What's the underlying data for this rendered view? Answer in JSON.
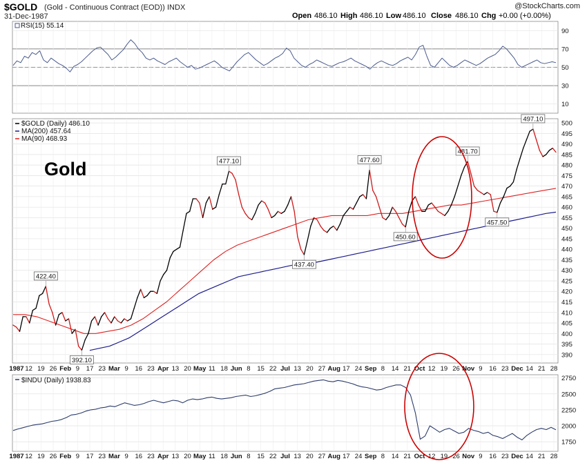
{
  "header": {
    "symbol": "$GOLD",
    "name": "(Gold - Continuous Contract (EOD))",
    "exchange": "INDX",
    "date": "31-Dec-1987",
    "copyright": "@StockCharts.com",
    "ohlc": {
      "open_label": "Open",
      "open": "486.10",
      "high_label": "High",
      "high": "486.10",
      "low_label": "Low",
      "low": "486.10",
      "close_label": "Close",
      "close": "486.10",
      "chg_label": "Chg",
      "chg": "+0.00 (+0.00%)"
    }
  },
  "overlay_text": "Gold",
  "colors": {
    "price": "#000000",
    "ma200": "#1a1a8c",
    "ma90": "#e02020",
    "rsi": "#4a5a8c",
    "indu": "#2a3a6a",
    "circle": "#cc0000"
  },
  "chart_data": [
    {
      "type": "line",
      "panel": "rsi",
      "legend": "RSI(15) 55.14",
      "ylim": [
        0,
        100
      ],
      "yticks": [
        "90",
        "70",
        "50",
        "30",
        "10"
      ],
      "reference_lines": [
        70,
        50,
        30
      ],
      "values": [
        52,
        57,
        55,
        62,
        60,
        66,
        64,
        68,
        58,
        55,
        60,
        57,
        54,
        52,
        49,
        45,
        51,
        53,
        56,
        60,
        64,
        68,
        71,
        72,
        68,
        64,
        58,
        61,
        65,
        69,
        75,
        80,
        76,
        70,
        66,
        60,
        58,
        60,
        57,
        55,
        53,
        56,
        58,
        60,
        56,
        53,
        50,
        52,
        48,
        49,
        51,
        53,
        55,
        57,
        54,
        50,
        48,
        46,
        51,
        56,
        60,
        64,
        66,
        62,
        58,
        55,
        52,
        54,
        57,
        60,
        62,
        65,
        71,
        68,
        60,
        56,
        52,
        50,
        53,
        55,
        58,
        56,
        54,
        52,
        51,
        53,
        55,
        56,
        58,
        60,
        57,
        55,
        53,
        51,
        48,
        52,
        55,
        57,
        55,
        53,
        52,
        54,
        57,
        59,
        61,
        58,
        64,
        72,
        74,
        62,
        52,
        50,
        55,
        60,
        56,
        52,
        50,
        52,
        55,
        58,
        56,
        54,
        52,
        54,
        57,
        60,
        62,
        64,
        68,
        73,
        70,
        65,
        60,
        53,
        50,
        52,
        54,
        56,
        58,
        55,
        54,
        55,
        56,
        55
      ]
    },
    {
      "type": "line",
      "panel": "price",
      "series": [
        {
          "name": "$GOLD (Daily) 486.10",
          "values": [
            404,
            403,
            401,
            408,
            408,
            405,
            411,
            412,
            418,
            419,
            422.4,
            414,
            410,
            404,
            409,
            410,
            406,
            407,
            400,
            402,
            394,
            392.1,
            397,
            400,
            406,
            408,
            404,
            408,
            410,
            407,
            405,
            408,
            406,
            405,
            407,
            406,
            407,
            412,
            417,
            421,
            417,
            418,
            420,
            420,
            419,
            425,
            428,
            430,
            436,
            439,
            440,
            441,
            449,
            457,
            458,
            464,
            464,
            462,
            455,
            462,
            465,
            459,
            460,
            466,
            471,
            471,
            477.1,
            476,
            473,
            466,
            460,
            457,
            455,
            454,
            457,
            461,
            463,
            462,
            459,
            455,
            456,
            458,
            457,
            458,
            461,
            465,
            458,
            446,
            440,
            437.4,
            444,
            451,
            455,
            454,
            451,
            449,
            448,
            450,
            451,
            449,
            452,
            456,
            458,
            460,
            459,
            462,
            465,
            466,
            464,
            477.6,
            468,
            465,
            460,
            455,
            454,
            456,
            460,
            458,
            455,
            452,
            450.6,
            458,
            463,
            465,
            461,
            458,
            458,
            461,
            462,
            460,
            458,
            457,
            456,
            458,
            461,
            465,
            470,
            475,
            479,
            481.7,
            476,
            470,
            468,
            467,
            466,
            467,
            466,
            458,
            457.5,
            462,
            465,
            469,
            470,
            472,
            478,
            483,
            488,
            492,
            496,
            497.1,
            492,
            487,
            484,
            485,
            487,
            488,
            486.1
          ]
        },
        {
          "name": "MA(200) 457.64",
          "values": [
            392,
            393,
            394,
            396,
            398,
            401,
            404,
            407,
            410,
            413,
            416,
            419,
            421,
            423,
            425,
            427,
            428,
            429,
            430,
            431,
            432,
            433,
            433,
            434,
            435,
            436,
            437,
            438,
            439,
            440,
            441,
            442,
            443,
            444,
            445,
            446,
            447,
            448,
            449,
            450,
            451,
            452,
            453,
            454,
            455,
            456,
            457,
            457.64
          ]
        },
        {
          "name": "MA(90) 468.93",
          "values": [
            409,
            409,
            408,
            406,
            404,
            402,
            400,
            400,
            401,
            402,
            404,
            407,
            411,
            415,
            420,
            425,
            430,
            435,
            439,
            442,
            444,
            446,
            448,
            450,
            452,
            454,
            455,
            456,
            456,
            456,
            456,
            457,
            457,
            457,
            458,
            459,
            460,
            461,
            461,
            462,
            463,
            464,
            465,
            466,
            467,
            468,
            468.93
          ]
        }
      ],
      "ylim": [
        386,
        502
      ],
      "yticks": [
        "500",
        "495",
        "490",
        "485",
        "480",
        "475",
        "470",
        "465",
        "460",
        "455",
        "450",
        "445",
        "440",
        "435",
        "430",
        "425",
        "420",
        "415",
        "410",
        "405",
        "400",
        "395",
        "390"
      ],
      "annotations": [
        "422.40",
        "392.10",
        "477.10",
        "437.40",
        "477.60",
        "450.60",
        "481.70",
        "457.50",
        "497.10"
      ]
    },
    {
      "type": "line",
      "panel": "indu",
      "legend": "$INDU (Daily) 1938.83",
      "ylim": [
        1600,
        2800
      ],
      "yticks": [
        "2750",
        "2500",
        "2250",
        "2000",
        "1750"
      ],
      "values": [
        1927,
        1950,
        1970,
        1990,
        2010,
        2020,
        2030,
        2050,
        2070,
        2080,
        2100,
        2130,
        2170,
        2180,
        2200,
        2230,
        2250,
        2260,
        2280,
        2290,
        2310,
        2300,
        2330,
        2360,
        2340,
        2320,
        2330,
        2350,
        2380,
        2400,
        2380,
        2360,
        2380,
        2400,
        2390,
        2360,
        2400,
        2420,
        2410,
        2420,
        2440,
        2450,
        2430,
        2420,
        2430,
        2440,
        2460,
        2470,
        2480,
        2460,
        2470,
        2490,
        2510,
        2540,
        2580,
        2590,
        2600,
        2620,
        2640,
        2650,
        2660,
        2680,
        2700,
        2710,
        2720,
        2700,
        2690,
        2710,
        2700,
        2680,
        2660,
        2630,
        2610,
        2600,
        2580,
        2560,
        2570,
        2600,
        2620,
        2640,
        2640,
        2600,
        2480,
        2200,
        1790,
        1840,
        2000,
        1950,
        1900,
        1940,
        1960,
        1920,
        1880,
        1900,
        1960,
        1930,
        1910,
        1880,
        1900,
        1850,
        1830,
        1800,
        1840,
        1880,
        1820,
        1780,
        1850,
        1900,
        1940,
        1960,
        1940,
        1975,
        1938.83
      ]
    }
  ],
  "xaxis": {
    "labels": [
      "1987",
      "12",
      "19",
      "26",
      "Feb",
      "9",
      "17",
      "23",
      "Mar",
      "9",
      "16",
      "23",
      "Apr",
      "13",
      "20",
      "May",
      "11",
      "18",
      "Jun",
      "8",
      "15",
      "22",
      "Jul",
      "13",
      "20",
      "27",
      "Aug",
      "17",
      "24",
      "Sep",
      "8",
      "14",
      "21",
      "Oct",
      "12",
      "19",
      "26",
      "Nov",
      "9",
      "16",
      "23",
      "Dec",
      "14",
      "21",
      "28"
    ],
    "bold": [
      "1987",
      "Feb",
      "Mar",
      "Apr",
      "May",
      "Jun",
      "Jul",
      "Aug",
      "Sep",
      "Oct",
      "Nov",
      "Dec"
    ]
  }
}
